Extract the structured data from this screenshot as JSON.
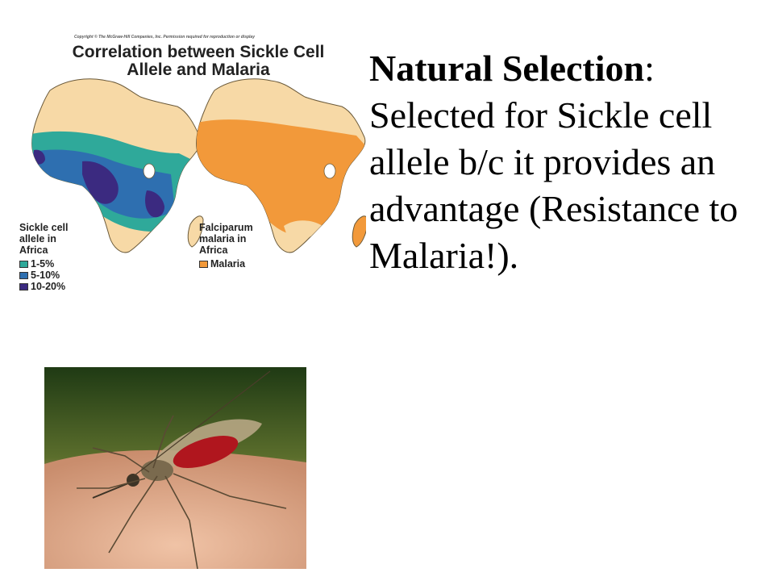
{
  "figure": {
    "copyright": "Copyright © The McGraw-Hill Companies, Inc. Permission required for reproduction or display",
    "title": "Correlation between Sickle Cell Allele and Malaria",
    "sickle_legend": {
      "heading": "Sickle cell\nallele in\nAfrica",
      "items": [
        {
          "label": "1-5%",
          "color": "#2fa99a"
        },
        {
          "label": "5-10%",
          "color": "#2e6fb0"
        },
        {
          "label": "10-20%",
          "color": "#3b2a80"
        }
      ]
    },
    "malaria_legend": {
      "heading": "Falciparum\nmalaria in\nAfrica",
      "items": [
        {
          "label": "Malaria",
          "color": "#f2993a"
        }
      ]
    },
    "land_color": "#f7d9a6"
  },
  "text": {
    "bold_lead": "Natural Selection",
    "colon": ":",
    "body": " Selected for Sickle cell allele b/c it provides an advantage (Resistance to Malaria!)."
  },
  "photo": {
    "subject": "mosquito-on-skin"
  }
}
